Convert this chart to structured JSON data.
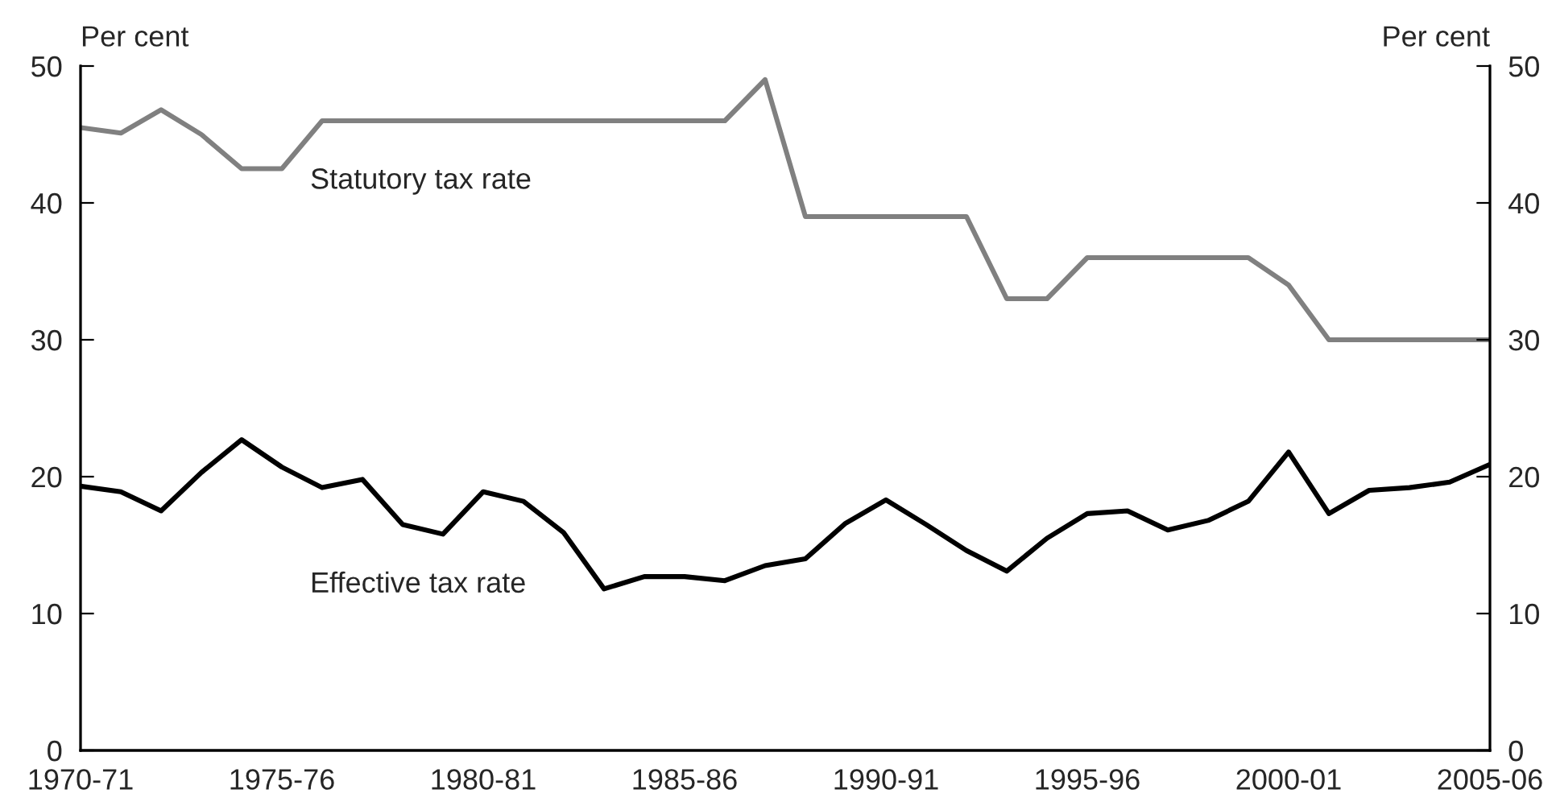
{
  "chart_data": {
    "type": "line",
    "ylabel": "Per cent",
    "y2label": "Per cent",
    "categories": [
      "1970-71",
      null,
      null,
      null,
      null,
      "1975-76",
      null,
      null,
      null,
      null,
      "1980-81",
      null,
      null,
      null,
      null,
      "1985-86",
      null,
      null,
      null,
      null,
      "1990-91",
      null,
      null,
      null,
      null,
      "1995-96",
      null,
      null,
      null,
      null,
      "2000-01",
      null,
      null,
      null,
      null,
      "2005-06"
    ],
    "ylim": [
      0,
      50
    ],
    "yticks": [
      0,
      10,
      20,
      30,
      40,
      50
    ],
    "y2lim": [
      0,
      50
    ],
    "y2ticks": [
      0,
      10,
      20,
      30,
      40,
      50
    ],
    "grid": false,
    "legend": false,
    "marker": "none",
    "line_style": "solid",
    "series": [
      {
        "name": "Statutory tax rate",
        "color": "#808080",
        "values": [
          45.5,
          45.1,
          46.8,
          45.0,
          42.5,
          42.5,
          46,
          46,
          46,
          46,
          46,
          46,
          46,
          46,
          46,
          46,
          46,
          49,
          39,
          39,
          39,
          39,
          39,
          33,
          33,
          36,
          36,
          36,
          36,
          36,
          34,
          30,
          30,
          30,
          30,
          30
        ]
      },
      {
        "name": "Effective tax rate",
        "color": "#000000",
        "values": [
          19.3,
          18.9,
          17.5,
          20.3,
          22.7,
          20.7,
          19.2,
          19.8,
          16.5,
          15.8,
          18.9,
          18.2,
          15.9,
          11.8,
          12.7,
          12.7,
          12.4,
          13.5,
          14.0,
          16.6,
          18.3,
          16.5,
          14.6,
          13.1,
          15.5,
          17.3,
          17.5,
          16.1,
          16.8,
          18.2,
          21.8,
          17.3,
          19.0,
          19.2,
          19.6,
          20.9
        ]
      }
    ]
  }
}
